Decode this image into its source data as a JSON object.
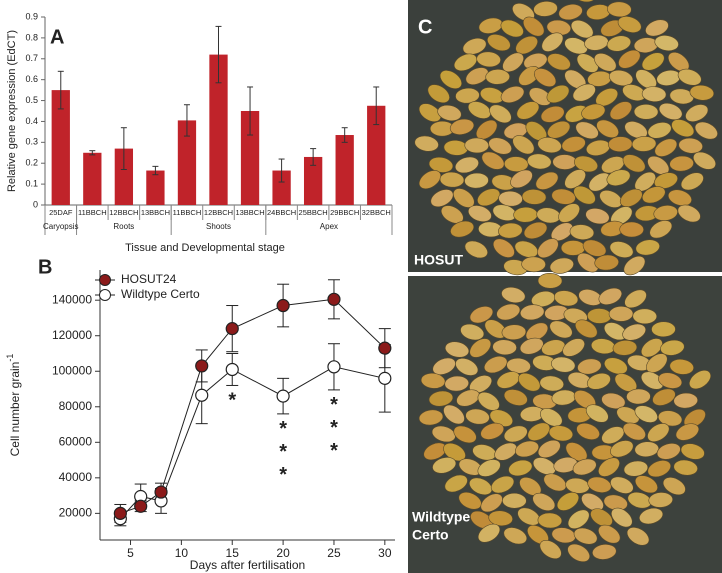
{
  "chart_data": [
    {
      "type": "bar",
      "panel_label": "A",
      "y_label": "Relative gene expression (EdCT)",
      "x_label": "Tissue and  Developmental stage",
      "categories": [
        "25DAF",
        "11BBCH",
        "12BBCH",
        "13BBCH",
        "11BBCH",
        "12BBCH",
        "13BBCH",
        "24BBCH",
        "25BBCH",
        "29BBCH",
        "32BBCH"
      ],
      "groups": [
        {
          "name": "Caryopsis",
          "size": 1
        },
        {
          "name": "Roots",
          "size": 3
        },
        {
          "name": "Shoots",
          "size": 3
        },
        {
          "name": "Apex",
          "size": 4
        }
      ],
      "values": [
        0.55,
        0.25,
        0.27,
        0.165,
        0.405,
        0.72,
        0.45,
        0.165,
        0.23,
        0.335,
        0.475
      ],
      "errors": [
        0.09,
        0.01,
        0.1,
        0.02,
        0.075,
        0.135,
        0.115,
        0.055,
        0.04,
        0.035,
        0.09
      ],
      "color": "#c0232a",
      "ylim": [
        0,
        0.9
      ],
      "yticks": [
        0,
        0.1,
        0.2,
        0.3,
        0.4,
        0.5,
        0.6,
        0.7,
        0.8,
        0.9
      ]
    },
    {
      "type": "line",
      "panel_label": "B",
      "y_label": "Cell number grain",
      "y_label_superscript": "-1",
      "x_label": "Days after fertilisation",
      "x": [
        4,
        6,
        8,
        12,
        15,
        20,
        25,
        30
      ],
      "series": [
        {
          "name": "HOSUT24",
          "color": "#8b1a1a",
          "values": [
            20000,
            24000,
            32000,
            103000,
            124000,
            137000,
            140500,
            113000
          ],
          "errors": [
            5000,
            3000,
            5000,
            9000,
            13000,
            12000,
            11000,
            11000
          ]
        },
        {
          "name": "Wildtype Certo",
          "color": "#ffffff",
          "values": [
            17000,
            29500,
            27000,
            86500,
            101000,
            86000,
            102500,
            96000
          ],
          "errors": [
            4000,
            7000,
            7000,
            16000,
            9000,
            10000,
            13000,
            19000
          ]
        }
      ],
      "significance": [
        {
          "x": 15,
          "marks": [
            "*"
          ]
        },
        {
          "x": 20,
          "marks": [
            "*",
            "*",
            "*"
          ]
        },
        {
          "x": 25,
          "marks": [
            "*",
            "*",
            "*"
          ]
        }
      ],
      "xlim": [
        2,
        31
      ],
      "xticks": [
        5,
        10,
        15,
        20,
        25,
        30
      ],
      "ylim": [
        5000,
        157000
      ],
      "yticks": [
        20000,
        40000,
        60000,
        80000,
        100000,
        120000,
        140000
      ]
    }
  ],
  "photo": {
    "panel_label": "C",
    "captions": [
      [
        "HOSUT"
      ],
      [
        "Wildtype",
        "Certo"
      ]
    ]
  }
}
